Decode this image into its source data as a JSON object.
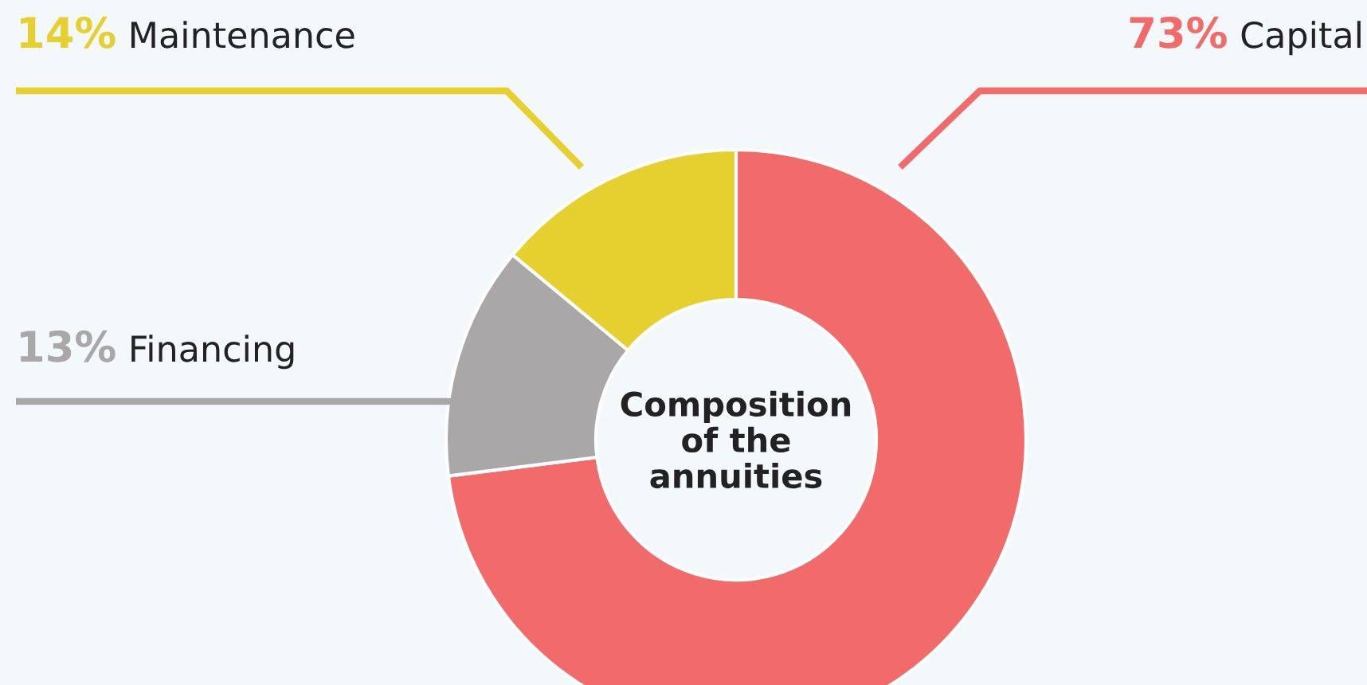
{
  "chart_data": {
    "type": "donut",
    "title": "Composition\nof the\nannuities",
    "categories": [
      "Capital",
      "Financing",
      "Maintenance"
    ],
    "values": [
      73,
      13,
      14
    ],
    "colors": [
      "#f26b6b",
      "#a9a7a8",
      "#e5d02f"
    ],
    "value_labels": [
      "73%",
      "13%",
      "14%"
    ],
    "legend": false
  }
}
